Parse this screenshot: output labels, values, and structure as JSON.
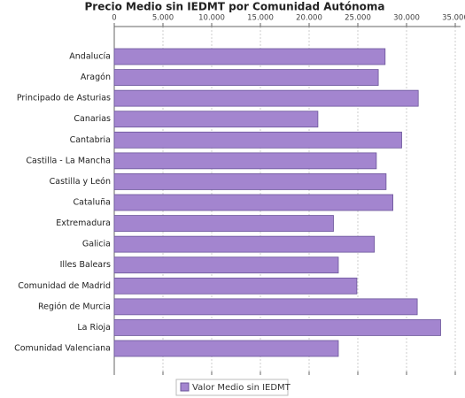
{
  "chart_data": {
    "type": "bar",
    "orientation": "horizontal",
    "title": "Precio Medio sin IEDMT por Comunidad Autónoma",
    "categories": [
      "Andalucía",
      "Aragón",
      "Principado de Asturias",
      "Canarias",
      "Cantabria",
      "Castilla - La Mancha",
      "Castilla y León",
      "Cataluña",
      "Extremadura",
      "Galicia",
      "Illes Balears",
      "Comunidad de Madrid",
      "Región de Murcia",
      "La Rioja",
      "Comunidad Valenciana"
    ],
    "series": [
      {
        "name": "Valor Medio sin IEDMT",
        "color": "#a385cf",
        "values": [
          27800,
          27100,
          31200,
          20900,
          29500,
          26900,
          27900,
          28600,
          22500,
          26700,
          23000,
          24900,
          31100,
          33500,
          23000
        ]
      }
    ],
    "xlim": [
      0,
      35000
    ],
    "xticks": [
      0,
      {
        "value": 5000,
        "label": "5.000"
      },
      {
        "value": 10000,
        "label": "10.000"
      },
      {
        "value": 15000,
        "label": "15.000"
      },
      {
        "value": 20000,
        "label": "20.000"
      },
      {
        "value": 25000,
        "label": "25.000"
      },
      {
        "value": 30000,
        "label": "30.000"
      },
      {
        "value": 35000,
        "label": "35.000"
      }
    ],
    "grid": true,
    "legend": "bottom"
  }
}
